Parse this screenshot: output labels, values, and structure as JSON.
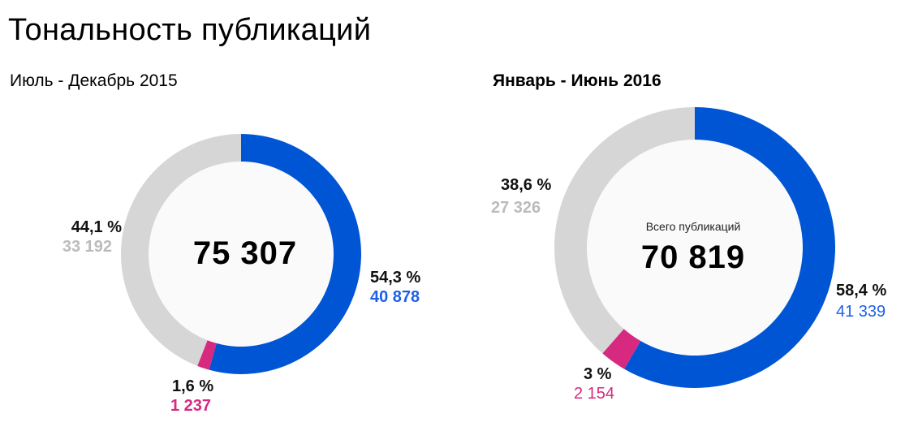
{
  "title": "Тональность публикаций",
  "colors": {
    "blue": "#0055d4",
    "pink": "#d6297f",
    "grey": "#d6d6d6",
    "center": "#fafafa",
    "blue_text": "#1f5fe8",
    "pink_text": "#d6297f",
    "grey_text": "#bbbbbb"
  },
  "chart_data": [
    {
      "type": "pie",
      "subtitle": "Июль - Декабрь 2015",
      "total": "75 307",
      "caption": "",
      "slices": [
        {
          "value": 40878,
          "value_label": "40 878",
          "percent_label": "54,3 %",
          "color": "#0055d4"
        },
        {
          "value": 1237,
          "value_label": "1 237",
          "percent_label": "1,6 %",
          "color": "#d6297f"
        },
        {
          "value": 33192,
          "value_label": "33 192",
          "percent_label": "44,1 %",
          "color": "#d6d6d6"
        }
      ]
    },
    {
      "type": "pie",
      "subtitle": "Январь - Июнь 2016",
      "total": "70 819",
      "caption": "Всего публикаций",
      "slices": [
        {
          "value": 41339,
          "value_label": "41 339",
          "percent_label": "58,4 %",
          "color": "#0055d4"
        },
        {
          "value": 2154,
          "value_label": "2 154",
          "percent_label": "3 %",
          "color": "#d6297f"
        },
        {
          "value": 27326,
          "value_label": "27 326",
          "percent_label": "38,6 %",
          "color": "#d6d6d6"
        }
      ]
    }
  ]
}
